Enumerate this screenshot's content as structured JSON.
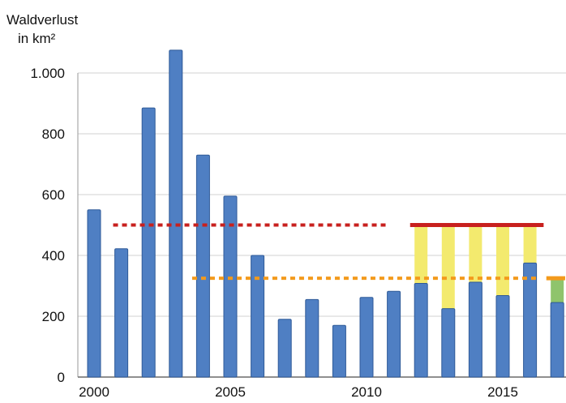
{
  "chart_data": {
    "type": "bar",
    "ylabel_line1": "Waldverlust",
    "ylabel_line2": "in km²",
    "ylim": [
      0,
      1000
    ],
    "yticks": [
      {
        "value": 0,
        "label": "0"
      },
      {
        "value": 200,
        "label": "200"
      },
      {
        "value": 400,
        "label": "400"
      },
      {
        "value": 600,
        "label": "600"
      },
      {
        "value": 800,
        "label": "800"
      },
      {
        "value": 1000,
        "label": "1.000"
      }
    ],
    "xticks": [
      {
        "value": 2000,
        "label": "2000"
      },
      {
        "value": 2005,
        "label": "2005"
      },
      {
        "value": 2010,
        "label": "2010"
      },
      {
        "value": 2015,
        "label": "2015"
      }
    ],
    "x": [
      2000,
      2001,
      2002,
      2003,
      2004,
      2005,
      2006,
      2007,
      2008,
      2009,
      2010,
      2011,
      2012,
      2013,
      2014,
      2015,
      2016,
      2017
    ],
    "values": [
      550,
      422,
      885,
      1075,
      730,
      595,
      400,
      190,
      255,
      170,
      262,
      282,
      308,
      225,
      312,
      268,
      375,
      245
    ],
    "gaps": [
      {
        "x": 2012,
        "from": 308,
        "to": 500
      },
      {
        "x": 2013,
        "from": 225,
        "to": 500
      },
      {
        "x": 2014,
        "from": 312,
        "to": 500
      },
      {
        "x": 2015,
        "from": 268,
        "to": 500
      },
      {
        "x": 2016,
        "from": 375,
        "to": 500
      },
      {
        "x": 2017,
        "from": 245,
        "to": 325
      }
    ],
    "reference_lines": [
      {
        "style": "dotted",
        "y": 500,
        "x_from": 2000.7,
        "x_to": 2010.7
      },
      {
        "style": "dotted",
        "y": 325,
        "x_from": 2003.6,
        "x_to": 2016.3
      },
      {
        "style": "solid",
        "y": 500,
        "x_from": 2011.6,
        "x_to": 2016.5
      },
      {
        "style": "solid",
        "y": 325,
        "x_from": 2016.6,
        "x_to": 2017.5
      }
    ],
    "colors": {
      "bar": "#4f7fc3",
      "bar_edge": "#2f5a98",
      "gap_yellow": "#f3ea6e",
      "gap_green": "#8fc46c",
      "red": "#c8201e",
      "orange": "#f39a1c",
      "grid": "#d0d0d0"
    },
    "grid": true
  }
}
